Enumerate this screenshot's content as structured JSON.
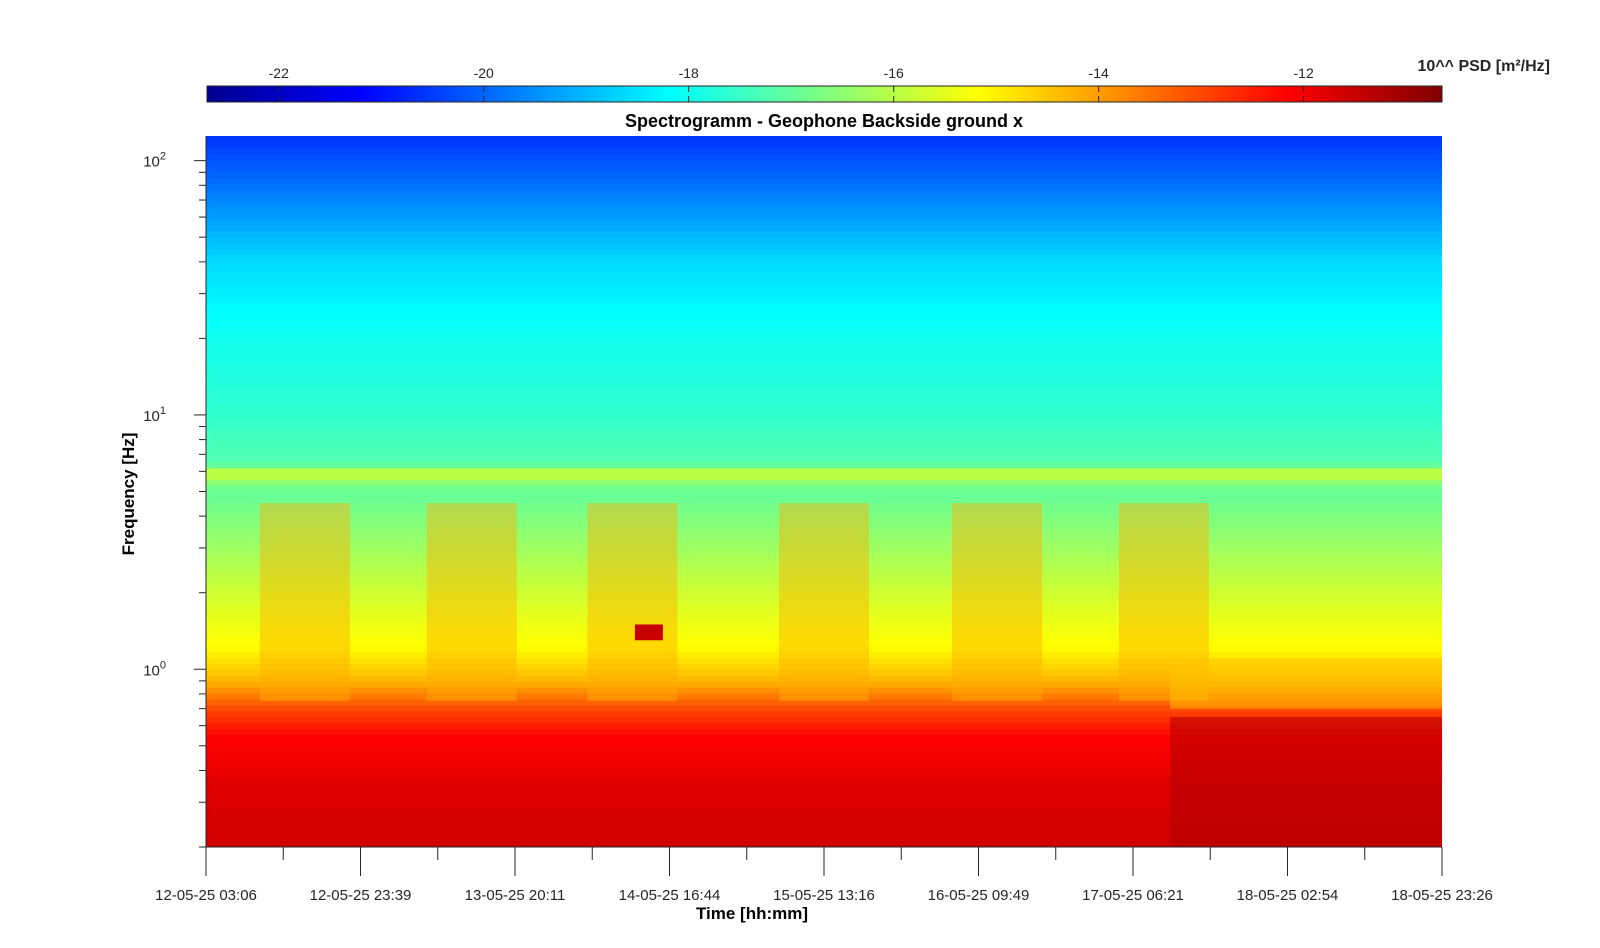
{
  "chart_data": {
    "type": "heatmap",
    "title": "Spectrogramm - Geophone Backside ground x",
    "xlabel": "Time [hh:mm]",
    "ylabel": "Frequency [Hz]",
    "colorbar_label": "10^^ PSD [m²/Hz]",
    "colorbar_ticks": [
      -22,
      -20,
      -18,
      -16,
      -14,
      -12
    ],
    "colorbar_tick_labels": [
      "-22",
      "-20",
      "-18",
      "-16",
      "-14",
      "-12"
    ],
    "colorbar_range": [
      -22.7,
      -10.65
    ],
    "colormap": "jet",
    "y_scale": "log",
    "ylim": [
      0.2,
      125
    ],
    "y_ticks": [
      1,
      10,
      100
    ],
    "y_tick_labels": [
      {
        "base": "10",
        "exp": "0"
      },
      {
        "base": "10",
        "exp": "1"
      },
      {
        "base": "10",
        "exp": "2"
      }
    ],
    "x_ticks": [
      "12-05-25 03:06",
      "12-05-25 23:39",
      "13-05-25 20:11",
      "14-05-25 16:44",
      "15-05-25 13:16",
      "16-05-25 09:49",
      "17-05-25 06:21",
      "18-05-25 02:54",
      "18-05-25 23:26"
    ],
    "xlim": [
      "12-05-25 03:06",
      "18-05-25 23:26"
    ],
    "grid": false,
    "legend": "colorbar-top",
    "features": {
      "narrowband_line_hz": 5.8,
      "low_freq_high_power_band_hz": [
        0.2,
        0.65
      ],
      "daytime_broadband_bursts": true,
      "event_block": {
        "time": "14-05-25 ~10:00",
        "freq_hz": 1.4,
        "log_psd": -11.5
      }
    }
  }
}
